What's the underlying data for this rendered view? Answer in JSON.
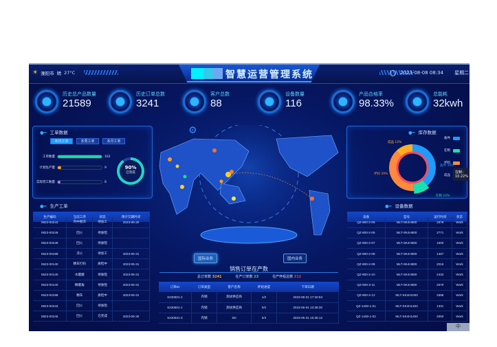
{
  "header": {
    "city": "溧阳市",
    "weather": "晴",
    "temperature": "27°C",
    "title": "智慧运营管理系统",
    "datetime": "2023-08-08 08:34",
    "weekday": "星期二"
  },
  "kpis": [
    {
      "label": "历史总产品数量",
      "value": "21589"
    },
    {
      "label": "历史订单总数",
      "value": "3241"
    },
    {
      "label": "客户总数",
      "value": "88"
    },
    {
      "label": "设备数量",
      "value": "116"
    },
    {
      "label": "产品合格率",
      "value": "98.33%"
    },
    {
      "label": "总能耗",
      "value": "32kwh"
    }
  ],
  "work_orders": {
    "title": "工单数据",
    "tabs": [
      "本日工单",
      "本周工单",
      "本月工单"
    ],
    "active_tab": 0,
    "bars": [
      {
        "label": "工单数量",
        "value": "162",
        "fraction": 1.0,
        "color": "#17d9a3"
      },
      {
        "label": "计划生产量",
        "value": "9",
        "fraction": 0.06,
        "color": "#ffa500"
      },
      {
        "label": "实际完工数量",
        "value": "8",
        "fraction": 0.05,
        "color": "#b47fe0"
      }
    ],
    "gauge": {
      "value": "90%",
      "label": "已完成",
      "fraction": 0.9
    }
  },
  "production": {
    "title": "生产工单",
    "columns": [
      "生产编码",
      "当前工序",
      "状态",
      "预计交期时间"
    ],
    "rows": [
      [
        "0823-00243",
        "内中频淬",
        "待加工",
        "2023-06-30"
      ],
      [
        "0823-00249",
        "回火",
        "待质检",
        ""
      ],
      [
        "0823-00249",
        "回火",
        "待质检",
        ""
      ],
      [
        "0523-00198",
        "淬火",
        "待加工",
        "2023-05-31"
      ],
      [
        "0523-00140",
        "精车打码",
        "质检中",
        "2023-05-31"
      ],
      [
        "0523-00140",
        "水磨磨",
        "待质检",
        "2023-05-31"
      ],
      [
        "0523-00140",
        "精磨角",
        "待质检",
        "2023-05-31"
      ],
      [
        "0523-00198",
        "精车",
        "质检中",
        "2023-05-31"
      ],
      [
        "0823-00243",
        "回火",
        "待质检",
        ""
      ],
      [
        "0823-00245",
        "回火",
        "已完成",
        "2023-06-30"
      ]
    ]
  },
  "center": {
    "buttons": [
      "国际业务",
      "国内业务"
    ],
    "active_button": 0,
    "title": "销售订单在产数",
    "stats": [
      {
        "label": "总订单数",
        "value": "3241",
        "color": "#ffb020"
      },
      {
        "label": "在产订单数",
        "value": "23",
        "color": "#4fe04f"
      },
      {
        "label": "在产杯组总数",
        "value": "212",
        "color": "#ff3b3b"
      }
    ],
    "columns": [
      "订单ID",
      "订单类型",
      "客户名称",
      "杯组进度",
      "下单日期"
    ],
    "rows": [
      [
        "S230601-2",
        "内销",
        "测试供应商",
        "1/2",
        "2023-06-01 17:20:53"
      ],
      [
        "S230601-1",
        "内销",
        "测试供应商",
        "0/2",
        "2023-06-01 13:38:30"
      ],
      [
        "S230531-3",
        "内销",
        "SD",
        "0/4",
        "2023-05-31 15:35:12"
      ]
    ]
  },
  "inventory": {
    "title": "库存数据",
    "legend": [
      {
        "name": "备件",
        "color": "#1e9bff"
      },
      {
        "name": "在制",
        "color": "#19e0b0"
      },
      {
        "name": "坏料",
        "color": "#ff8a3d"
      },
      {
        "name": "成品",
        "color": "#ffb020"
      }
    ],
    "slices": [
      {
        "name": "备件",
        "percent": 39,
        "label": "备件 39%"
      },
      {
        "name": "在制",
        "percent": 10,
        "label": "在制 10%"
      },
      {
        "name": "坏料",
        "percent": 39,
        "label": "坏料 39%"
      },
      {
        "name": "成品",
        "percent": 12,
        "label": "成品 12%"
      }
    ],
    "tooltip": {
      "name": "在制：",
      "value": "10.22%"
    }
  },
  "equipment": {
    "title": "设备数据",
    "columns": [
      "设备",
      "型号",
      "运行时间",
      "状态"
    ],
    "rows": [
      [
        "QZ-800-2-05",
        "MLT-SK4H800",
        "2679",
        "Work"
      ],
      [
        "QZ-800-2-06",
        "MLT-SK4H800",
        "2771",
        "Work"
      ],
      [
        "QZ-800-2-07",
        "MLT-SK4H800",
        "1500",
        "Work"
      ],
      [
        "QZ-800-2-08",
        "MLT-SK4H800",
        "1467",
        "Work"
      ],
      [
        "QZ-800-2-09",
        "MLT-SK4H800",
        "2016",
        "Work"
      ],
      [
        "QZ-800-2-10",
        "MLT-SK4H800",
        "2433",
        "Work"
      ],
      [
        "QZ-800-2-11",
        "MLT-SK4H800",
        "2670",
        "Work"
      ],
      [
        "QZ-800-2-12",
        "MLT-SK4H1000",
        "2598",
        "Work"
      ],
      [
        "QZ-1400-1-01",
        "MLT-SK4H1400",
        "1331",
        "Work"
      ],
      [
        "QZ-1400-1-02",
        "MLT-SK4H1400",
        "2000",
        "Work"
      ]
    ]
  },
  "watermark": "中"
}
